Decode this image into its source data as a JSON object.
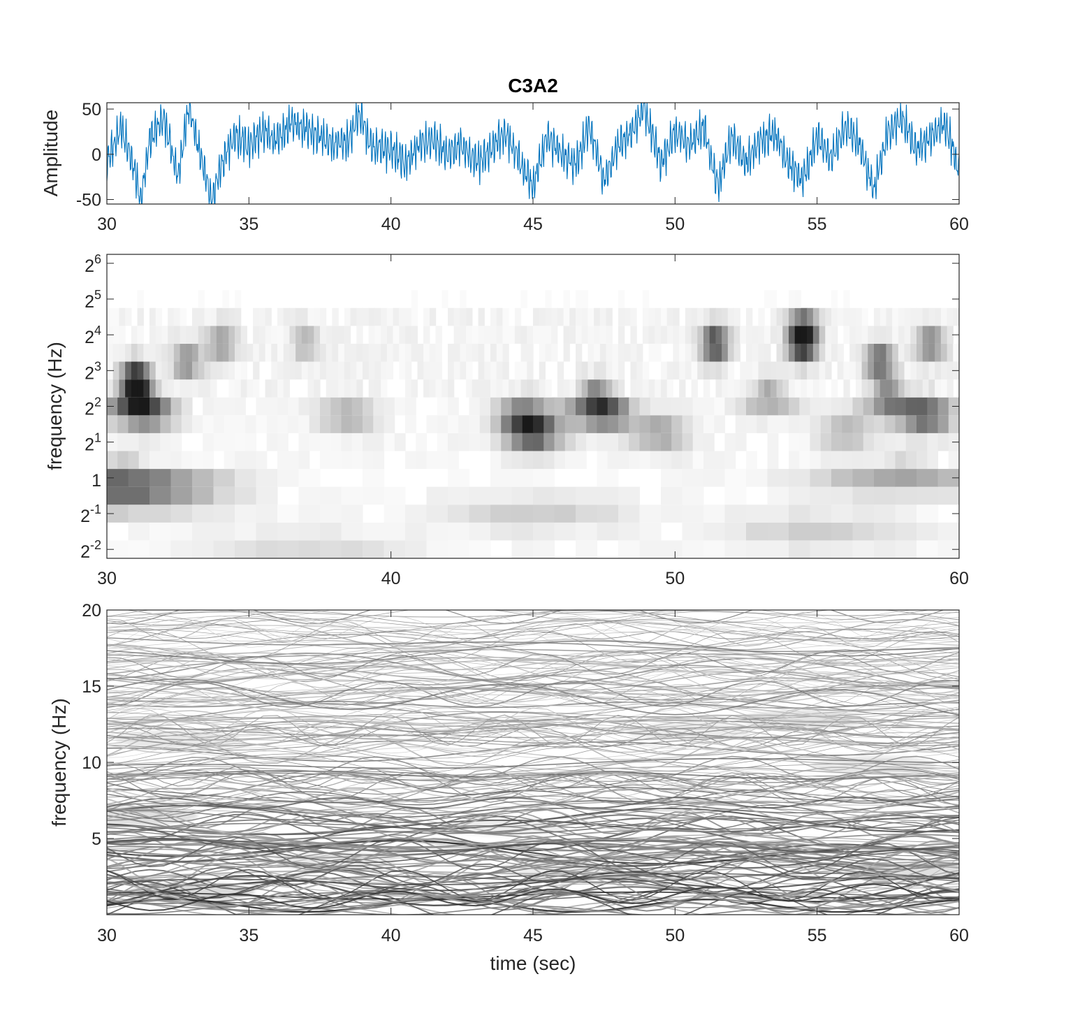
{
  "chart_data": [
    {
      "type": "line",
      "title": "C3A2",
      "xlabel": "",
      "ylabel": "Amplitude",
      "xlim": [
        30,
        60
      ],
      "ylim": [
        -55,
        57
      ],
      "xticks": [
        30,
        35,
        40,
        45,
        50,
        55,
        60
      ],
      "yticks": [
        -50,
        0,
        50
      ],
      "color": "#0072BD",
      "series": [
        {
          "x": [
            30,
            30.5,
            31,
            31.2,
            31.5,
            32,
            32.5,
            32.9,
            33.2,
            33.7,
            34,
            34.5,
            35,
            35.5,
            36,
            36.5,
            37,
            37.5,
            38,
            38.5,
            38.9,
            39.3,
            40,
            40.5,
            41,
            41.5,
            42,
            42.5,
            43,
            43.5,
            44,
            44.5,
            45,
            45.5,
            46,
            46.5,
            47,
            47.5,
            48,
            48.5,
            48.9,
            49.5,
            50,
            50.5,
            51,
            51.5,
            52,
            52.5,
            53,
            53.5,
            54,
            54.5,
            55,
            55.5,
            56,
            56.5,
            57,
            57.5,
            58,
            58.5,
            59,
            59.5,
            60
          ],
          "y": [
            -10,
            30,
            -20,
            -52,
            15,
            40,
            -25,
            55,
            10,
            -52,
            -15,
            20,
            10,
            25,
            15,
            35,
            30,
            20,
            10,
            15,
            45,
            10,
            5,
            -10,
            10,
            15,
            0,
            10,
            -10,
            5,
            25,
            -5,
            -35,
            20,
            0,
            -10,
            30,
            -30,
            10,
            25,
            52,
            -10,
            25,
            10,
            30,
            -35,
            20,
            -10,
            15,
            25,
            -10,
            -30,
            20,
            -5,
            30,
            10,
            -40,
            25,
            40,
            5,
            20,
            35,
            -20
          ]
        }
      ]
    },
    {
      "type": "heatmap",
      "title": "",
      "xlabel": "",
      "ylabel": "frequency (Hz)",
      "xlim": [
        30,
        60
      ],
      "xticks": [
        30,
        40,
        50,
        60
      ],
      "y_scale": "log2",
      "ylim_log2": [
        -2.25,
        6.25
      ],
      "ytick_labels": [
        "2-2",
        "2-1",
        "1",
        "21",
        "22",
        "23",
        "24",
        "25",
        "26"
      ],
      "colormap": "gray (dark = high energy)",
      "hotspots": [
        {
          "t": 31.0,
          "log2f": 2.75,
          "v": 1.0
        },
        {
          "t": 31.1,
          "log2f": 2.25,
          "v": 0.7
        },
        {
          "t": 31.3,
          "log2f": 1.75,
          "v": 0.5
        },
        {
          "t": 30.5,
          "log2f": 0.0,
          "v": 0.45
        },
        {
          "t": 30.5,
          "log2f": -0.5,
          "v": 0.45
        },
        {
          "t": 32.8,
          "log2f": 3.25,
          "v": 0.5
        },
        {
          "t": 34.0,
          "log2f": 3.75,
          "v": 0.45
        },
        {
          "t": 37.0,
          "log2f": 3.75,
          "v": 0.3
        },
        {
          "t": 38.5,
          "log2f": 1.75,
          "v": 0.35
        },
        {
          "t": 45.0,
          "log2f": 1.25,
          "v": 0.75
        },
        {
          "t": 44.7,
          "log2f": 1.75,
          "v": 0.55
        },
        {
          "t": 47.2,
          "log2f": 2.25,
          "v": 0.6
        },
        {
          "t": 47.5,
          "log2f": 1.75,
          "v": 0.55
        },
        {
          "t": 49.5,
          "log2f": 1.25,
          "v": 0.4
        },
        {
          "t": 51.4,
          "log2f": 3.75,
          "v": 0.85
        },
        {
          "t": 53.3,
          "log2f": 2.25,
          "v": 0.4
        },
        {
          "t": 54.5,
          "log2f": 3.75,
          "v": 0.95
        },
        {
          "t": 54.5,
          "log2f": 4.25,
          "v": 0.6
        },
        {
          "t": 56.0,
          "log2f": 1.25,
          "v": 0.3
        },
        {
          "t": 57.2,
          "log2f": 3.25,
          "v": 0.7
        },
        {
          "t": 57.5,
          "log2f": 2.25,
          "v": 0.55
        },
        {
          "t": 58.8,
          "log2f": 1.75,
          "v": 0.7
        },
        {
          "t": 59.0,
          "log2f": 3.75,
          "v": 0.55
        },
        {
          "t": 58.0,
          "log2f": 0.0,
          "v": 0.35
        },
        {
          "t": 45.0,
          "log2f": -1.0,
          "v": 0.2
        },
        {
          "t": 55.0,
          "log2f": -1.5,
          "v": 0.2
        },
        {
          "t": 37.0,
          "log2f": -2.0,
          "v": 0.15
        }
      ]
    },
    {
      "type": "heatmap",
      "title": "",
      "xlabel": "time (sec)",
      "ylabel": "frequency (Hz)",
      "xlim": [
        30,
        60
      ],
      "ylim": [
        0,
        20
      ],
      "xticks": [
        30,
        35,
        40,
        45,
        50,
        55,
        60
      ],
      "yticks": [
        5,
        10,
        15,
        20
      ],
      "colormap": "gray (dark = high energy)"
    }
  ]
}
